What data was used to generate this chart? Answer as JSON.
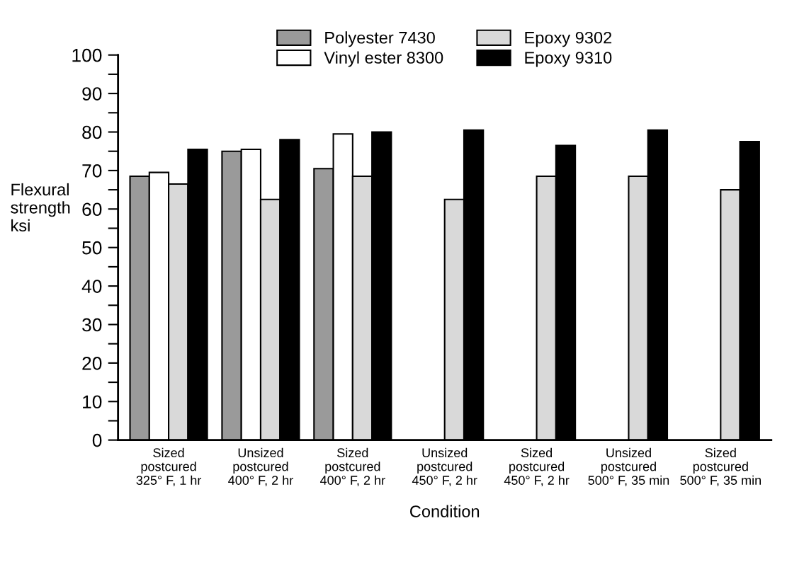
{
  "chart_data": {
    "type": "bar",
    "xlabel": "Condition",
    "ylabel": "Flexural\nstrength\nksi",
    "categories": [
      "Sized postcured\n325° F, 1 hr",
      "Unsized postcured\n400° F, 2 hr",
      "Sized postcured\n400° F, 2 hr",
      "Unsized postcured\n450° F, 2 hr",
      "Sized postcured\n450° F, 2 hr",
      "Unsized postcured\n500° F, 35 min",
      "Sized postcured\n500° F, 35 min"
    ],
    "series": [
      {
        "name": "Polyester 7430",
        "color": "#9a9a9a",
        "values": [
          68.5,
          75,
          70.5,
          null,
          null,
          null,
          null
        ]
      },
      {
        "name": "Vinyl ester 8300",
        "color": "#ffffff",
        "values": [
          69.5,
          75.5,
          79.5,
          null,
          null,
          null,
          null
        ]
      },
      {
        "name": "Epoxy 9302",
        "color": "#d9d9d9",
        "values": [
          66.5,
          62.5,
          68.5,
          62.5,
          68.5,
          68.5,
          65
        ]
      },
      {
        "name": "Epoxy 9310",
        "color": "#000000",
        "values": [
          75.5,
          78,
          80,
          80.5,
          76.5,
          80.5,
          77.5
        ]
      }
    ],
    "ylim": [
      0,
      100
    ],
    "yticks": [
      0,
      {
        "value": 5,
        "label": null
      },
      10,
      {
        "value": 15,
        "label": null
      },
      20,
      {
        "value": 25,
        "label": null
      },
      30,
      {
        "value": 35,
        "label": null
      },
      40,
      {
        "value": 45,
        "label": null
      },
      50,
      {
        "value": 55,
        "label": null
      },
      60,
      {
        "value": 65,
        "label": null
      },
      70,
      {
        "value": 75,
        "label": null
      },
      80,
      {
        "value": 85,
        "label": null
      },
      90,
      {
        "value": 95,
        "label": null
      },
      100
    ],
    "grid": false,
    "legend": "top"
  }
}
